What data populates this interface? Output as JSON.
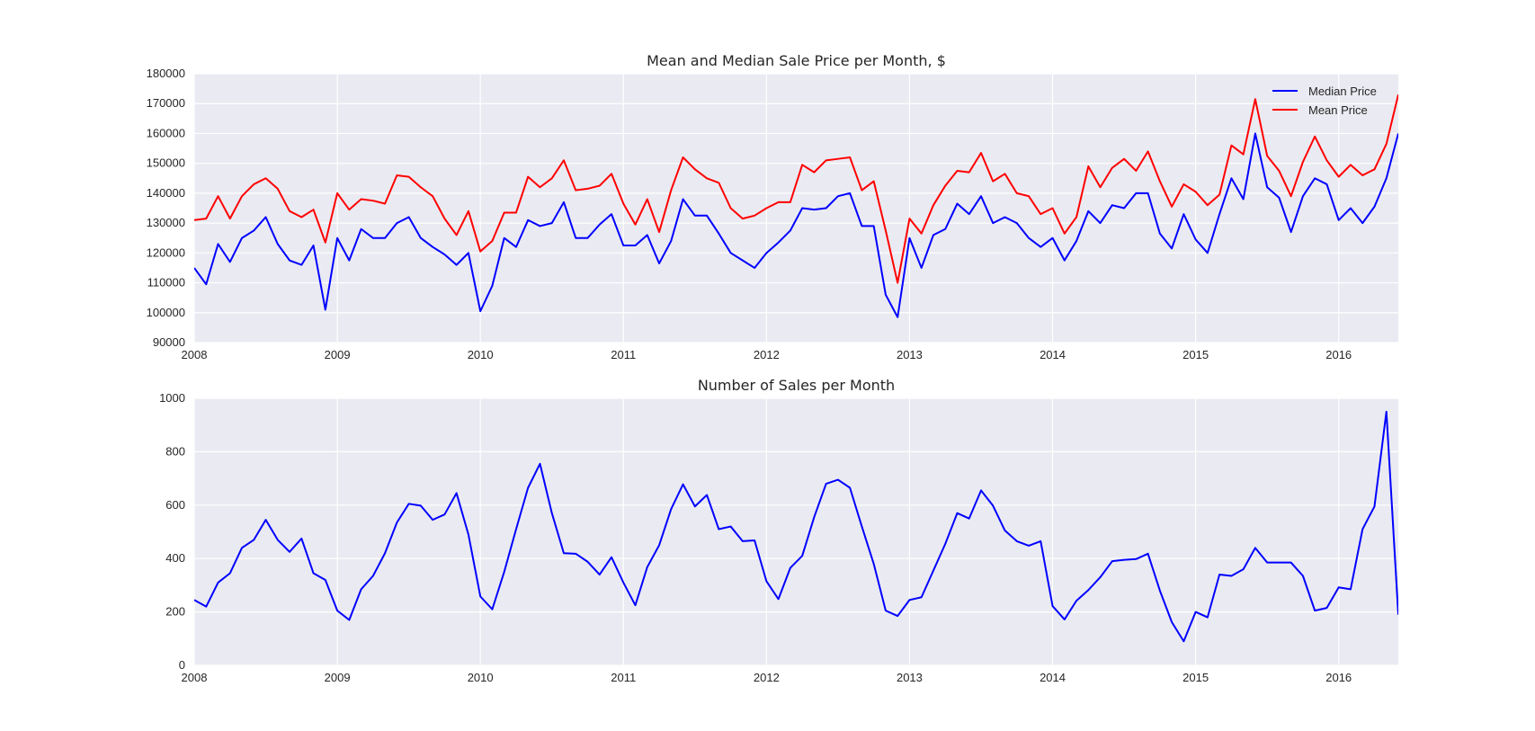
{
  "chart_data": [
    {
      "type": "line",
      "title": "Mean and Median Sale Price per Month, $",
      "xlabel": "",
      "ylabel": "",
      "xlim": [
        2008.0,
        2016.4167
      ],
      "ylim": [
        90000,
        180000
      ],
      "x_ticks": [
        "2008",
        "2009",
        "2010",
        "2011",
        "2012",
        "2013",
        "2014",
        "2015",
        "2016"
      ],
      "y_ticks": [
        "90000",
        "100000",
        "110000",
        "120000",
        "130000",
        "140000",
        "150000",
        "160000",
        "170000",
        "180000"
      ],
      "grid": true,
      "legend": "top-right",
      "x_start": "2008-01",
      "x_step": "1 month",
      "series": [
        {
          "name": "Median Price",
          "color": "#0000ff",
          "values": [
            115000,
            109500,
            123000,
            117000,
            125000,
            127500,
            132000,
            123000,
            117500,
            116000,
            122500,
            101000,
            125000,
            117500,
            128000,
            125000,
            125000,
            130000,
            132000,
            125000,
            122000,
            119500,
            116000,
            120000,
            100500,
            109000,
            125000,
            122000,
            131000,
            129000,
            130000,
            137000,
            125000,
            125000,
            129500,
            133000,
            122500,
            122500,
            126000,
            116500,
            124000,
            138000,
            132500,
            132500,
            126500,
            120000,
            117500,
            115000,
            120000,
            123500,
            127500,
            135000,
            134500,
            135000,
            139000,
            140000,
            129000,
            129000,
            106000,
            98500,
            125000,
            115000,
            126000,
            128000,
            136500,
            133000,
            139000,
            130000,
            132000,
            130000,
            125000,
            122000,
            125000,
            117500,
            124000,
            134000,
            130000,
            136000,
            135000,
            140000,
            140000,
            126500,
            121500,
            133000,
            124500,
            120000,
            133000,
            145000,
            138000,
            160000,
            142000,
            138500,
            127000,
            139000,
            145000,
            143000,
            131000,
            135000,
            130000,
            135500,
            145000,
            160000
          ]
        },
        {
          "name": "Mean Price",
          "color": "#ff0000",
          "values": [
            131000,
            131500,
            139000,
            131500,
            139000,
            143000,
            145000,
            141500,
            134000,
            132000,
            134500,
            123500,
            140000,
            134500,
            138000,
            137500,
            136500,
            146000,
            145500,
            142000,
            139000,
            131500,
            126000,
            134000,
            120500,
            124000,
            133500,
            133500,
            145500,
            142000,
            145000,
            151000,
            141000,
            141500,
            142500,
            146500,
            136500,
            129500,
            138000,
            127000,
            141000,
            152000,
            148000,
            145000,
            143500,
            135000,
            131500,
            132500,
            135000,
            137000,
            137000,
            149500,
            147000,
            151000,
            151500,
            152000,
            141000,
            144000,
            127500,
            110000,
            131500,
            126500,
            136000,
            142500,
            147500,
            147000,
            153500,
            144000,
            146500,
            140000,
            139000,
            133000,
            135000,
            126500,
            132000,
            149000,
            142000,
            148500,
            151500,
            147500,
            154000,
            144000,
            135500,
            143000,
            140500,
            136000,
            139500,
            156000,
            153000,
            171500,
            152500,
            147500,
            139000,
            150500,
            159000,
            151000,
            145500,
            149500,
            146000,
            148000,
            156500,
            173000
          ]
        }
      ]
    },
    {
      "type": "line",
      "title": "Number of Sales per Month",
      "xlabel": "",
      "ylabel": "",
      "xlim": [
        2008.0,
        2016.4167
      ],
      "ylim": [
        0,
        1000
      ],
      "x_ticks": [
        "2008",
        "2009",
        "2010",
        "2011",
        "2012",
        "2013",
        "2014",
        "2015",
        "2016"
      ],
      "y_ticks": [
        "0",
        "200",
        "400",
        "600",
        "800",
        "1000"
      ],
      "grid": true,
      "x_start": "2008-01",
      "x_step": "1 month",
      "series": [
        {
          "color": "#0000ff",
          "values": [
            245,
            220,
            310,
            345,
            440,
            470,
            545,
            470,
            425,
            475,
            345,
            320,
            205,
            170,
            285,
            335,
            420,
            535,
            605,
            598,
            545,
            565,
            645,
            490,
            258,
            210,
            350,
            510,
            665,
            755,
            570,
            420,
            418,
            388,
            340,
            405,
            310,
            225,
            368,
            450,
            585,
            678,
            595,
            638,
            510,
            520,
            465,
            468,
            315,
            248,
            365,
            410,
            555,
            680,
            695,
            665,
            520,
            380,
            205,
            185,
            245,
            255,
            355,
            455,
            570,
            550,
            655,
            598,
            505,
            465,
            448,
            465,
            222,
            172,
            242,
            282,
            330,
            390,
            395,
            398,
            418,
            280,
            162,
            90,
            200,
            180,
            340,
            335,
            360,
            440,
            385,
            385,
            385,
            335,
            205,
            215,
            292,
            285,
            510,
            595,
            950,
            190
          ]
        }
      ]
    }
  ]
}
